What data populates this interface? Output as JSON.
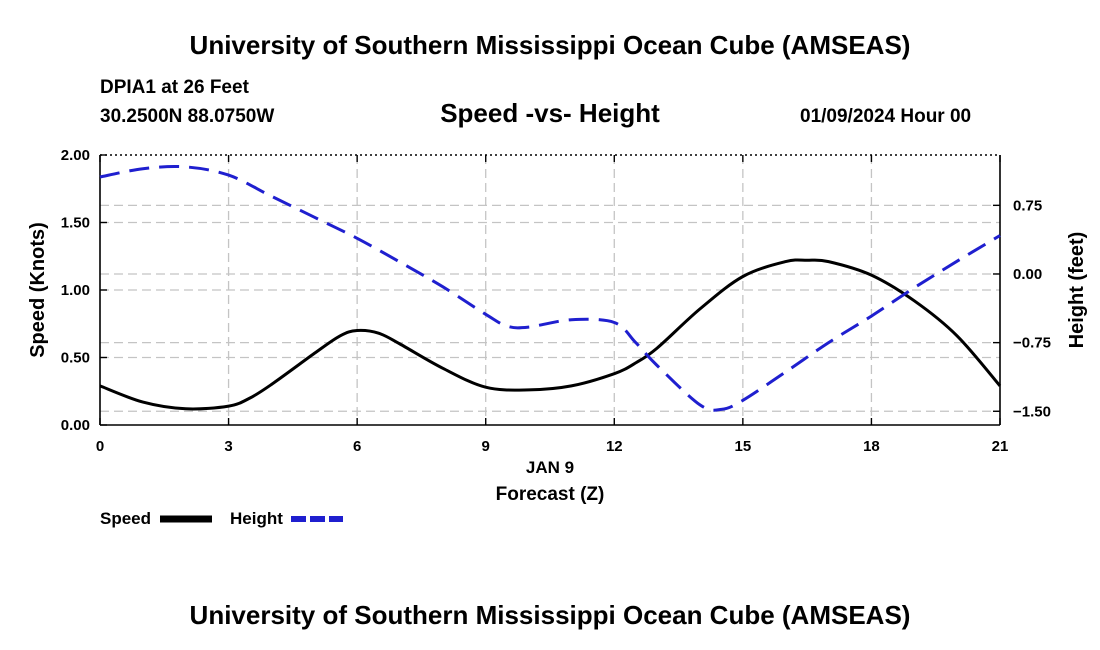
{
  "page": {
    "title_top": "University of Southern Mississippi Ocean Cube (AMSEAS)",
    "title_bottom": "University of Southern Mississippi Ocean Cube (AMSEAS)",
    "station": "DPIA1 at 26 Feet",
    "coords": "30.2500N  88.0750W",
    "date": "01/09/2024 Hour 00"
  },
  "chart_data": {
    "type": "line",
    "title": "Speed -vs- Height",
    "xlabel": "Forecast (Z)",
    "x_date_label": "JAN 9",
    "ylabel": "Speed (Knots)",
    "y2label": "Height (feet)",
    "xlim": [
      0,
      21
    ],
    "ylim": [
      0,
      2.0
    ],
    "y2lim": [
      -1.65,
      1.3
    ],
    "grid": true,
    "x_ticks": [
      0,
      3,
      6,
      9,
      12,
      15,
      18,
      21
    ],
    "x_tick_labels": [
      "0",
      "3",
      "6",
      "9",
      "12",
      "15",
      "18",
      "21"
    ],
    "y_ticks": [
      0,
      0.5,
      1.0,
      1.5,
      2.0
    ],
    "y_tick_labels": [
      "0.00",
      "0.50",
      "1.00",
      "1.50",
      "2.00"
    ],
    "y2_ticks": [
      -1.5,
      -0.75,
      0.0,
      0.75
    ],
    "y2_tick_labels": [
      "−1.50",
      "−0.75",
      "0.00",
      "0.75"
    ],
    "legend": {
      "placement": "bottom-left"
    },
    "series": [
      {
        "name": "Speed",
        "axis": "left",
        "color": "#000000",
        "style": "solid",
        "x": [
          0,
          1,
          2,
          3,
          3.5,
          4,
          5,
          5.6,
          6,
          6.5,
          7,
          8,
          9,
          10,
          11,
          12,
          12.5,
          13,
          14,
          15,
          16,
          16.5,
          17,
          18,
          19,
          20,
          21
        ],
        "values": [
          0.29,
          0.17,
          0.12,
          0.14,
          0.2,
          0.3,
          0.53,
          0.66,
          0.7,
          0.68,
          0.6,
          0.42,
          0.28,
          0.26,
          0.29,
          0.38,
          0.46,
          0.57,
          0.86,
          1.1,
          1.21,
          1.22,
          1.21,
          1.11,
          0.92,
          0.66,
          0.29
        ]
      },
      {
        "name": "Height",
        "axis": "right",
        "color": "#1f1fcf",
        "style": "dashed",
        "x": [
          0,
          1,
          2,
          3,
          4,
          5,
          6,
          7,
          8,
          9,
          9.5,
          10,
          11,
          12,
          12.5,
          13,
          14,
          14.5,
          15,
          16,
          17,
          18,
          19,
          20,
          21
        ],
        "values": [
          1.06,
          1.15,
          1.17,
          1.08,
          0.85,
          0.62,
          0.39,
          0.13,
          -0.14,
          -0.44,
          -0.57,
          -0.58,
          -0.5,
          -0.53,
          -0.75,
          -1.0,
          -1.43,
          -1.48,
          -1.38,
          -1.07,
          -0.75,
          -0.46,
          -0.15,
          0.14,
          0.42
        ]
      }
    ]
  }
}
